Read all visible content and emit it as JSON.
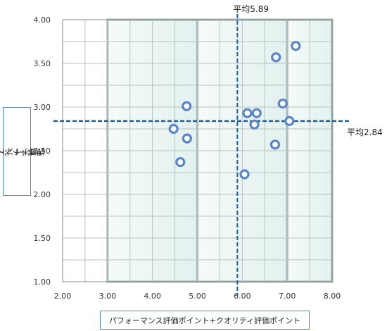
{
  "chart_data": {
    "type": "scatter",
    "xlabel": "パフォーマンス評価ポイント+クオリティ評価ポイント",
    "ylabel_lines": [
      "サポートポータル",
      "評価ポイント"
    ],
    "xlim": [
      2.0,
      8.0
    ],
    "ylim": [
      1.0,
      4.0
    ],
    "x_ticks": [
      "2.00",
      "3.00",
      "4.00",
      "5.00",
      "6.00",
      "7.00",
      "8.00"
    ],
    "y_ticks": [
      "1.00",
      "1.50",
      "2.00",
      "2.50",
      "3.00",
      "3.50",
      "4.00"
    ],
    "grid": true,
    "shaded_panels": [
      [
        3.0,
        5.0
      ],
      [
        5.0,
        7.0
      ],
      [
        7.0,
        8.0
      ]
    ],
    "mean_x": 5.89,
    "mean_y": 2.84,
    "mean_x_label": "平均5.89",
    "mean_y_label": "平均2.84",
    "points": [
      {
        "x": 4.47,
        "y": 2.75
      },
      {
        "x": 4.62,
        "y": 2.37
      },
      {
        "x": 4.76,
        "y": 3.01
      },
      {
        "x": 4.77,
        "y": 2.64
      },
      {
        "x": 6.05,
        "y": 2.23
      },
      {
        "x": 6.11,
        "y": 2.93
      },
      {
        "x": 6.27,
        "y": 2.8
      },
      {
        "x": 6.32,
        "y": 2.93
      },
      {
        "x": 6.73,
        "y": 2.57
      },
      {
        "x": 6.75,
        "y": 3.57
      },
      {
        "x": 6.9,
        "y": 3.04
      },
      {
        "x": 7.05,
        "y": 2.84
      },
      {
        "x": 7.19,
        "y": 3.7
      }
    ],
    "marker_color": "#5b86c5",
    "mean_line_color": "#1f5f9e"
  }
}
